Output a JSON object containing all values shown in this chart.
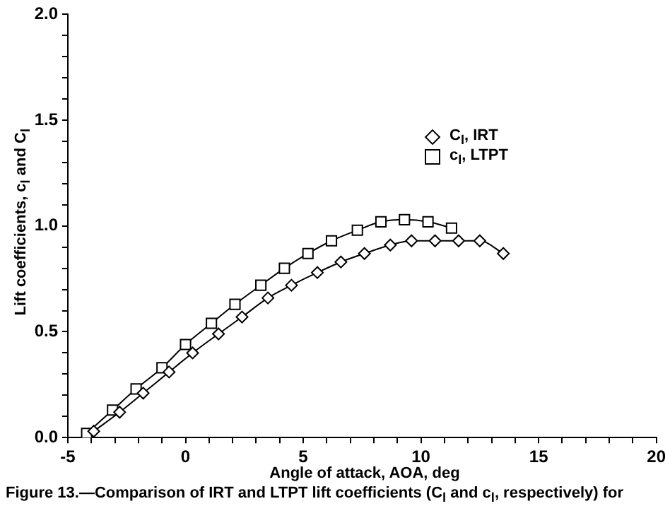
{
  "chart_data": {
    "type": "line",
    "xlabel": "Angle of attack, AOA, deg",
    "ylabel": "Lift coefficients, c$_{l}$ and C$_{l}$",
    "annotations": [
      "Figure 13.—Comparison of IRT and LTPT lift coefficients (C$_{l}$ and c$_{l}$, respectively) for"
    ],
    "series": [
      {
        "name": "C$_{l}$, IRT",
        "color": "#000000",
        "marker": "diamond",
        "x": [
          -3.9,
          -2.8,
          -1.8,
          -0.7,
          0.3,
          1.4,
          2.4,
          3.5,
          4.5,
          5.6,
          6.6,
          7.6,
          8.7,
          9.6,
          10.6,
          11.6,
          12.5,
          13.5
        ],
        "values": [
          0.03,
          0.12,
          0.21,
          0.31,
          0.4,
          0.49,
          0.57,
          0.66,
          0.72,
          0.78,
          0.83,
          0.87,
          0.91,
          0.93,
          0.93,
          0.93,
          0.93,
          0.87
        ]
      },
      {
        "name": "c$_{l}$, LTPT",
        "color": "#000000",
        "marker": "square",
        "x": [
          -4.2,
          -3.1,
          -2.1,
          -1.0,
          0.0,
          1.1,
          2.1,
          3.2,
          4.2,
          5.2,
          6.2,
          7.3,
          8.3,
          9.3,
          10.3,
          11.3
        ],
        "values": [
          0.02,
          0.13,
          0.23,
          0.33,
          0.44,
          0.54,
          0.63,
          0.72,
          0.8,
          0.87,
          0.93,
          0.98,
          1.02,
          1.03,
          1.02,
          0.99
        ]
      }
    ],
    "xlim": [
      -5,
      20
    ],
    "xticks": [
      -5,
      {
        "value": -4,
        "label": null
      },
      {
        "value": -3,
        "label": null
      },
      {
        "value": -2,
        "label": null
      },
      {
        "value": -1,
        "label": null
      },
      0,
      {
        "value": 1,
        "label": null
      },
      {
        "value": 2,
        "label": null
      },
      {
        "value": 3,
        "label": null
      },
      {
        "value": 4,
        "label": null
      },
      5,
      {
        "value": 6,
        "label": null
      },
      {
        "value": 7,
        "label": null
      },
      {
        "value": 8,
        "label": null
      },
      {
        "value": 9,
        "label": null
      },
      10,
      {
        "value": 11,
        "label": null
      },
      {
        "value": 12,
        "label": null
      },
      {
        "value": 13,
        "label": null
      },
      {
        "value": 14,
        "label": null
      },
      15,
      {
        "value": 16,
        "label": null
      },
      {
        "value": 17,
        "label": null
      },
      {
        "value": 18,
        "label": null
      },
      {
        "value": 19,
        "label": null
      },
      20
    ],
    "ylim": [
      0,
      2
    ],
    "yticks": [
      {
        "value": 0,
        "label": "0.0"
      },
      {
        "value": 0.1,
        "label": null
      },
      {
        "value": 0.2,
        "label": null
      },
      {
        "value": 0.3,
        "label": null
      },
      {
        "value": 0.4,
        "label": null
      },
      0.5,
      {
        "value": 0.6,
        "label": null
      },
      {
        "value": 0.7,
        "label": null
      },
      {
        "value": 0.8,
        "label": null
      },
      {
        "value": 0.9,
        "label": null
      },
      {
        "value": 1,
        "label": "1.0"
      },
      {
        "value": 1.1,
        "label": null
      },
      {
        "value": 1.2,
        "label": null
      },
      {
        "value": 1.3,
        "label": null
      },
      {
        "value": 1.4,
        "label": null
      },
      1.5,
      {
        "value": 1.6,
        "label": null
      },
      {
        "value": 1.7,
        "label": null
      },
      {
        "value": 1.8,
        "label": null
      },
      {
        "value": 1.9,
        "label": null
      },
      {
        "value": 2,
        "label": "2.0"
      }
    ],
    "grid": false,
    "legend": "top right",
    "line_style": "solid"
  }
}
